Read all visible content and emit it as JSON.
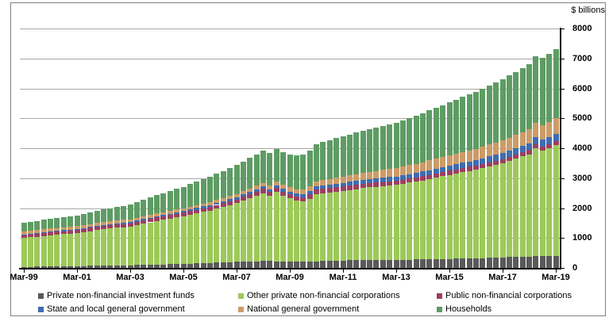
{
  "chart": {
    "unit_label": "$ billions",
    "frame_color": "#808080",
    "grid_color": "#a8a8a8",
    "axis_color": "#000000",
    "background": "#ffffff"
  },
  "chart_data": {
    "type": "bar",
    "stacked": true,
    "title": "",
    "ylabel": "$ billions",
    "ylim": [
      0,
      8000
    ],
    "y_ticks": [
      0,
      1000,
      2000,
      3000,
      4000,
      5000,
      6000,
      7000,
      8000
    ],
    "grid": true,
    "legend_position": "bottom",
    "n_bars": 81,
    "frequency": "quarterly",
    "x_start": "Mar-99",
    "x_end": "Mar-19",
    "x_tick_labels": [
      "Mar-99",
      "Mar-01",
      "Mar-03",
      "Mar-05",
      "Mar-07",
      "Mar-09",
      "Mar-11",
      "Mar-13",
      "Mar-15",
      "Mar-17",
      "Mar-19"
    ],
    "x_tick_indices": [
      0,
      8,
      16,
      24,
      32,
      40,
      48,
      56,
      64,
      72,
      80
    ],
    "series": [
      {
        "name": "Private non-financial investment funds",
        "color": "#595959",
        "values": [
          35,
          38,
          40,
          43,
          45,
          49,
          53,
          56,
          60,
          64,
          68,
          71,
          75,
          79,
          83,
          86,
          90,
          95,
          100,
          105,
          110,
          116,
          123,
          129,
          135,
          143,
          150,
          158,
          165,
          174,
          183,
          191,
          200,
          208,
          215,
          223,
          230,
          226,
          222,
          219,
          215,
          218,
          220,
          223,
          225,
          231,
          238,
          244,
          250,
          253,
          255,
          258,
          260,
          263,
          265,
          268,
          270,
          274,
          278,
          281,
          285,
          289,
          293,
          296,
          300,
          305,
          310,
          315,
          320,
          328,
          335,
          343,
          350,
          358,
          365,
          373,
          380,
          385,
          390,
          395,
          400
        ]
      },
      {
        "name": "Other private non-financial corporations",
        "color": "#9dc95a",
        "values": [
          970,
          988,
          1005,
          1023,
          1040,
          1056,
          1073,
          1089,
          1105,
          1134,
          1163,
          1191,
          1220,
          1238,
          1255,
          1273,
          1290,
          1333,
          1375,
          1418,
          1460,
          1493,
          1525,
          1558,
          1590,
          1631,
          1673,
          1714,
          1755,
          1806,
          1858,
          1909,
          1960,
          2038,
          2115,
          2193,
          2270,
          2180,
          2310,
          2190,
          2105,
          2030,
          2000,
          2090,
          2250,
          2270,
          2290,
          2310,
          2330,
          2355,
          2380,
          2405,
          2430,
          2448,
          2465,
          2483,
          2500,
          2535,
          2570,
          2605,
          2640,
          2683,
          2725,
          2768,
          2810,
          2848,
          2885,
          2923,
          2960,
          3008,
          3055,
          3103,
          3150,
          3218,
          3285,
          3353,
          3420,
          3620,
          3530,
          3600,
          3710
        ]
      },
      {
        "name": "Public non-financial corporations",
        "color": "#9d3e61",
        "values": [
          105,
          105,
          105,
          105,
          105,
          105,
          105,
          105,
          105,
          106,
          108,
          109,
          110,
          110,
          110,
          110,
          110,
          111,
          113,
          114,
          115,
          116,
          118,
          119,
          120,
          121,
          123,
          124,
          125,
          126,
          128,
          129,
          130,
          133,
          135,
          138,
          140,
          140,
          140,
          140,
          140,
          140,
          140,
          140,
          140,
          140,
          140,
          140,
          140,
          140,
          140,
          140,
          140,
          140,
          140,
          140,
          140,
          140,
          140,
          140,
          140,
          140,
          140,
          140,
          140,
          140,
          140,
          140,
          140,
          140,
          140,
          140,
          140,
          139,
          138,
          136,
          135,
          134,
          133,
          131,
          130
        ]
      },
      {
        "name": "State and local general government",
        "color": "#3e6db1",
        "values": [
          15,
          18,
          20,
          23,
          25,
          26,
          28,
          29,
          30,
          31,
          33,
          34,
          35,
          36,
          38,
          39,
          40,
          41,
          43,
          44,
          45,
          46,
          48,
          49,
          50,
          53,
          55,
          58,
          60,
          63,
          65,
          68,
          70,
          74,
          78,
          81,
          85,
          88,
          90,
          93,
          95,
          99,
          103,
          106,
          110,
          114,
          118,
          121,
          125,
          128,
          130,
          133,
          135,
          138,
          140,
          143,
          145,
          148,
          150,
          153,
          155,
          159,
          163,
          166,
          170,
          174,
          178,
          181,
          185,
          190,
          195,
          200,
          205,
          209,
          213,
          216,
          220,
          225,
          230,
          235,
          240
        ]
      },
      {
        "name": "National general government",
        "color": "#cc9c68",
        "values": [
          105,
          104,
          103,
          101,
          100,
          99,
          98,
          96,
          95,
          95,
          95,
          95,
          95,
          95,
          95,
          95,
          95,
          95,
          95,
          95,
          95,
          96,
          98,
          99,
          100,
          101,
          103,
          104,
          105,
          106,
          108,
          109,
          110,
          111,
          113,
          114,
          115,
          120,
          125,
          130,
          135,
          145,
          155,
          165,
          175,
          184,
          193,
          201,
          210,
          219,
          228,
          236,
          245,
          254,
          263,
          271,
          280,
          288,
          295,
          303,
          310,
          319,
          328,
          336,
          345,
          354,
          363,
          371,
          380,
          390,
          400,
          410,
          420,
          433,
          445,
          458,
          470,
          483,
          495,
          508,
          520
        ]
      },
      {
        "name": "Households",
        "color": "#5e9c64",
        "values": [
          280,
          291,
          303,
          314,
          325,
          335,
          345,
          355,
          365,
          380,
          395,
          410,
          425,
          440,
          455,
          470,
          485,
          515,
          545,
          575,
          605,
          633,
          660,
          688,
          715,
          746,
          778,
          809,
          840,
          871,
          903,
          934,
          965,
          994,
          1023,
          1052,
          1081,
          1085,
          1089,
          1094,
          1098,
          1134,
          1170,
          1205,
          1241,
          1267,
          1293,
          1319,
          1345,
          1365,
          1385,
          1406,
          1426,
          1448,
          1470,
          1491,
          1513,
          1544,
          1574,
          1605,
          1636,
          1670,
          1703,
          1737,
          1771,
          1802,
          1833,
          1864,
          1895,
          1931,
          1967,
          2003,
          2039,
          2075,
          2110,
          2146,
          2182,
          2214,
          2246,
          2279,
          2311
        ]
      }
    ]
  }
}
